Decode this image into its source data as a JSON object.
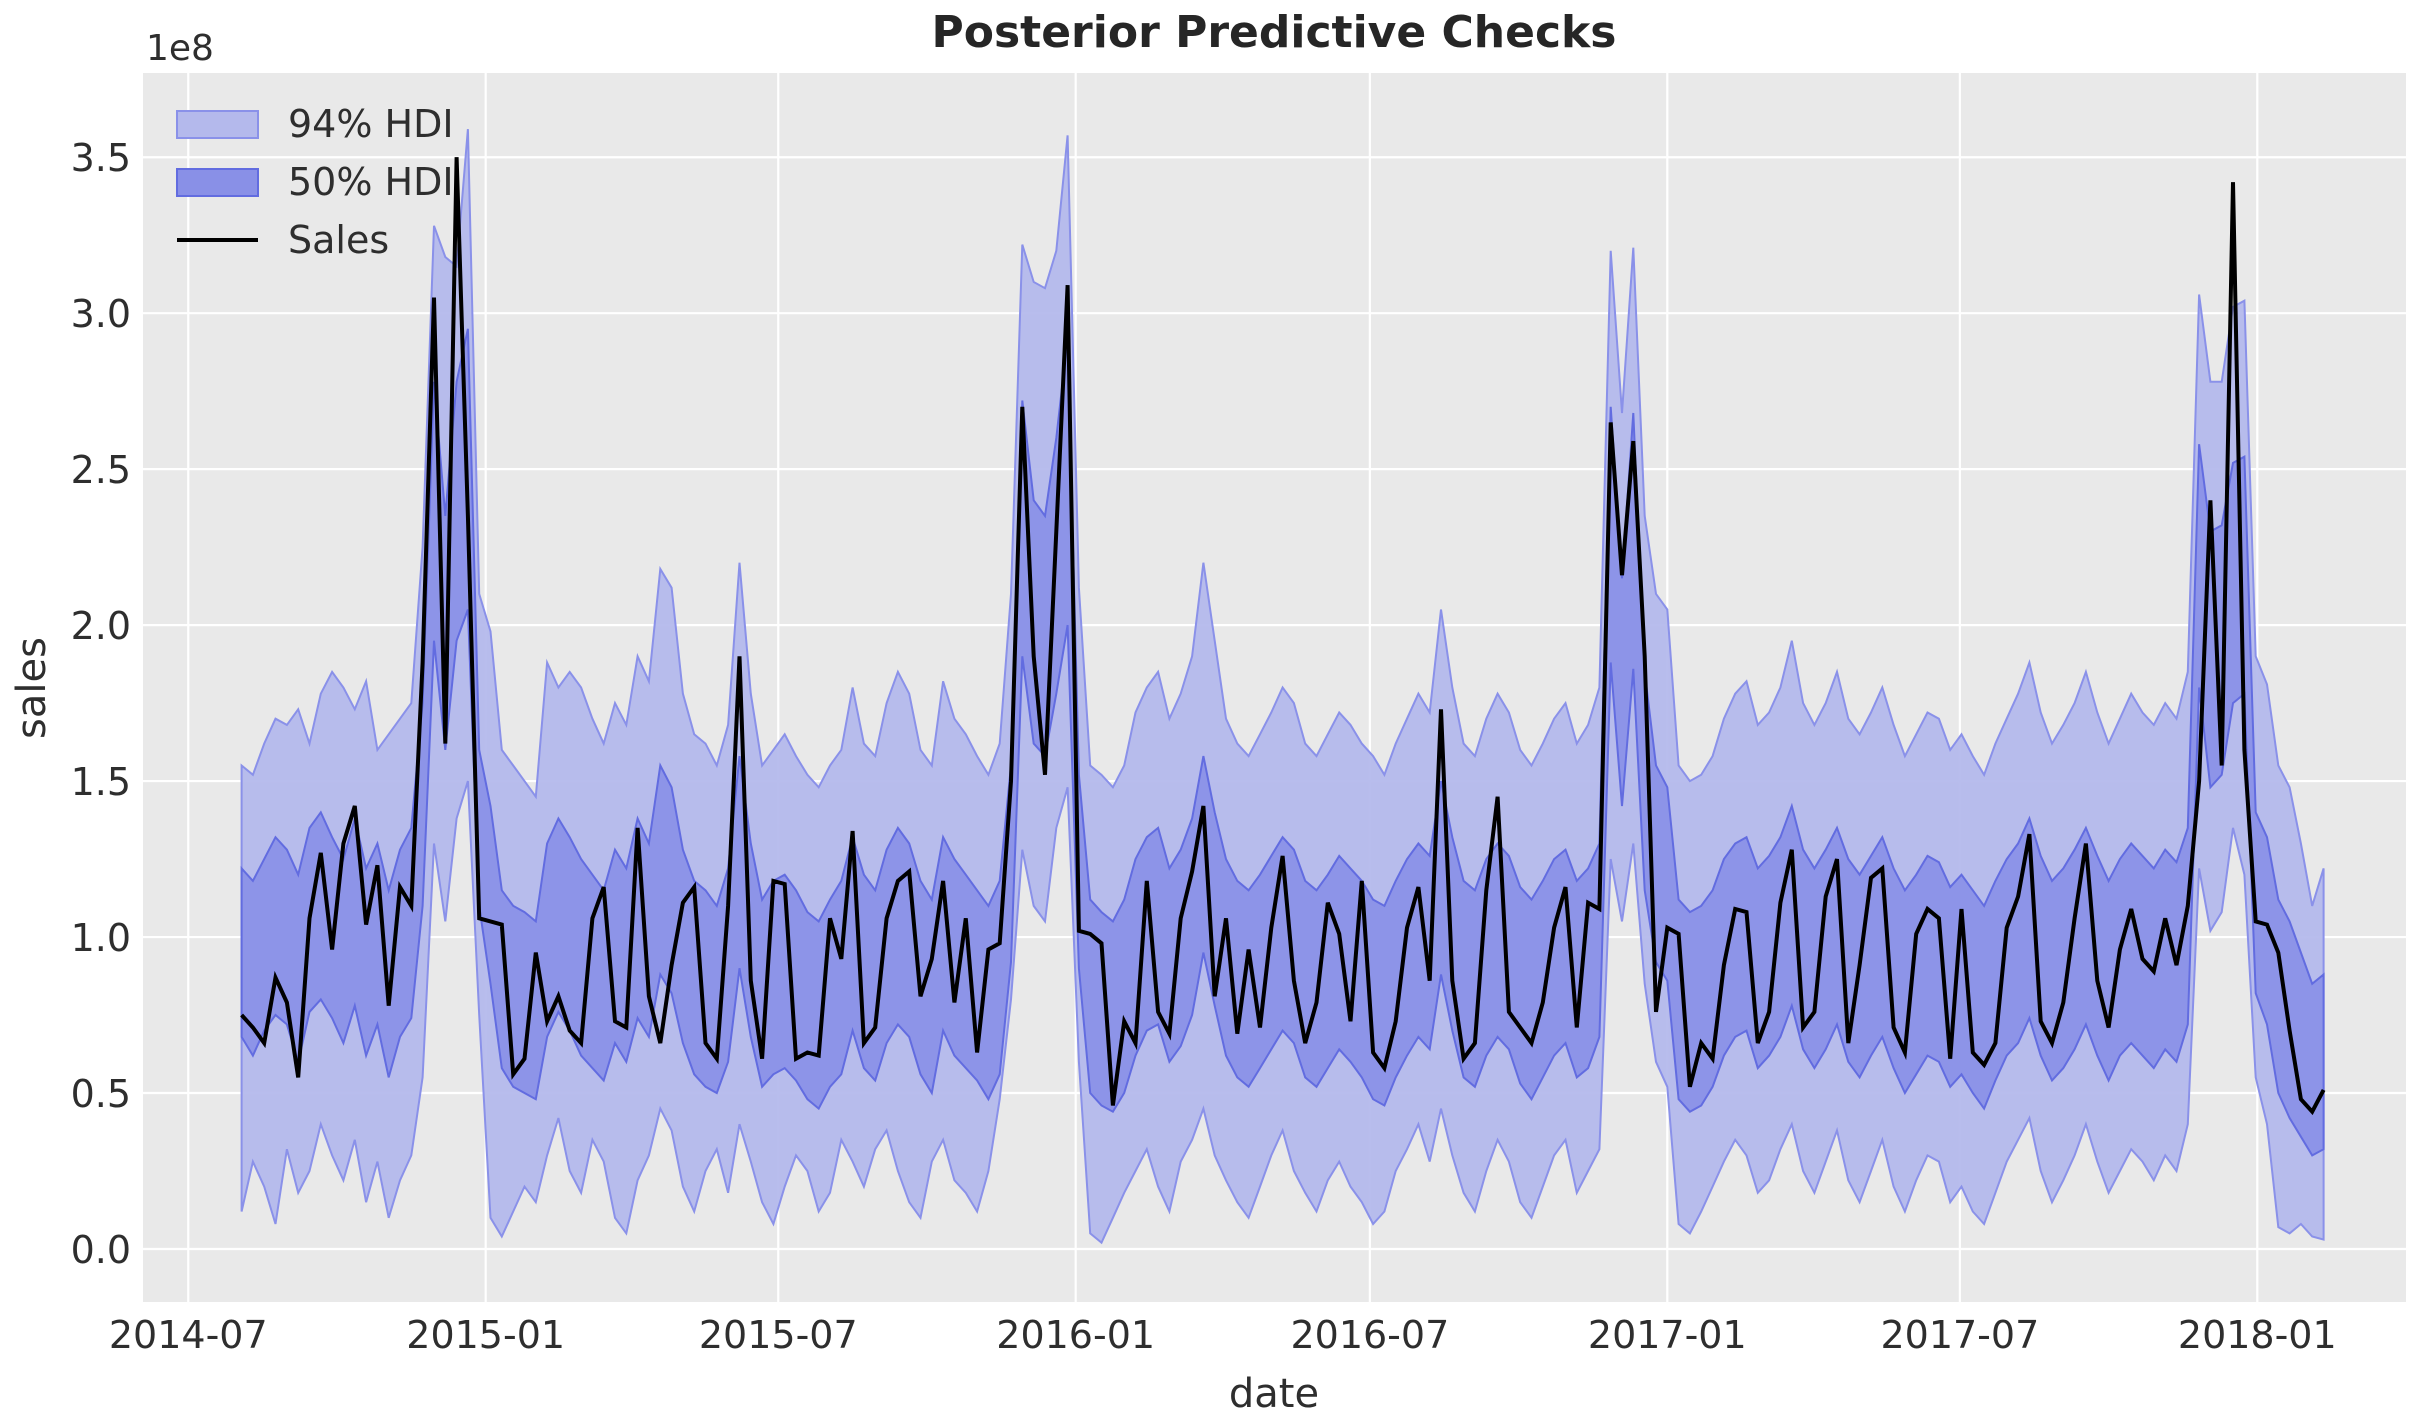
{
  "chart_data": {
    "type": "line",
    "title": "Posterior Predictive Checks",
    "xlabel": "date",
    "ylabel": "sales",
    "y_offset_text": "1e8",
    "unit": "1e8",
    "grid": true,
    "legend_position": "upper left",
    "legend": {
      "items": [
        {
          "label": "94% HDI",
          "kind": "patch"
        },
        {
          "label": "50% HDI",
          "kind": "patch"
        },
        {
          "label": "Sales",
          "kind": "line"
        }
      ]
    },
    "xlim": [
      "2014-06-03",
      "2018-04-03"
    ],
    "ylim": [
      -0.17,
      3.77
    ],
    "x_ticks": [
      {
        "label": "2014-07",
        "date": "2014-07-01"
      },
      {
        "label": "2015-01",
        "date": "2015-01-01"
      },
      {
        "label": "2015-07",
        "date": "2015-07-01"
      },
      {
        "label": "2016-01",
        "date": "2016-01-01"
      },
      {
        "label": "2016-07",
        "date": "2016-07-01"
      },
      {
        "label": "2017-01",
        "date": "2017-01-01"
      },
      {
        "label": "2017-07",
        "date": "2017-07-01"
      },
      {
        "label": "2018-01",
        "date": "2018-01-01"
      }
    ],
    "y_ticks": [
      {
        "label": "0.0",
        "value": 0.0
      },
      {
        "label": "0.5",
        "value": 0.5
      },
      {
        "label": "1.0",
        "value": 1.0
      },
      {
        "label": "1.5",
        "value": 1.5
      },
      {
        "label": "2.0",
        "value": 2.0
      },
      {
        "label": "2.5",
        "value": 2.5
      },
      {
        "label": "3.0",
        "value": 3.0
      },
      {
        "label": "3.5",
        "value": 3.5
      }
    ],
    "x_start": "2014-08-03",
    "x_step_days": 7,
    "n_points": 185,
    "series": [
      {
        "name": "94% HDI",
        "kind": "band",
        "hi": [
          1.55,
          1.52,
          1.62,
          1.7,
          1.68,
          1.73,
          1.62,
          1.78,
          1.85,
          1.8,
          1.73,
          1.82,
          1.6,
          1.65,
          1.7,
          1.75,
          2.25,
          3.28,
          3.18,
          3.15,
          3.59,
          2.1,
          1.98,
          1.6,
          1.55,
          1.5,
          1.45,
          1.88,
          1.8,
          1.85,
          1.8,
          1.7,
          1.62,
          1.75,
          1.68,
          1.9,
          1.82,
          2.18,
          2.12,
          1.78,
          1.65,
          1.62,
          1.55,
          1.68,
          2.2,
          1.78,
          1.55,
          1.6,
          1.65,
          1.58,
          1.52,
          1.48,
          1.55,
          1.6,
          1.8,
          1.62,
          1.58,
          1.75,
          1.85,
          1.78,
          1.6,
          1.55,
          1.82,
          1.7,
          1.65,
          1.58,
          1.52,
          1.62,
          2.1,
          3.22,
          3.1,
          3.08,
          3.2,
          3.57,
          2.12,
          1.55,
          1.52,
          1.48,
          1.55,
          1.72,
          1.8,
          1.85,
          1.7,
          1.78,
          1.9,
          2.2,
          1.95,
          1.7,
          1.62,
          1.58,
          1.65,
          1.72,
          1.8,
          1.75,
          1.62,
          1.58,
          1.65,
          1.72,
          1.68,
          1.62,
          1.58,
          1.52,
          1.62,
          1.7,
          1.78,
          1.72,
          2.05,
          1.8,
          1.62,
          1.58,
          1.7,
          1.78,
          1.72,
          1.6,
          1.55,
          1.62,
          1.7,
          1.75,
          1.62,
          1.68,
          1.8,
          3.2,
          2.68,
          3.21,
          2.35,
          2.1,
          2.05,
          1.55,
          1.5,
          1.52,
          1.58,
          1.7,
          1.78,
          1.82,
          1.68,
          1.72,
          1.8,
          1.95,
          1.75,
          1.68,
          1.75,
          1.85,
          1.7,
          1.65,
          1.72,
          1.8,
          1.68,
          1.58,
          1.65,
          1.72,
          1.7,
          1.6,
          1.65,
          1.58,
          1.52,
          1.62,
          1.7,
          1.78,
          1.88,
          1.72,
          1.62,
          1.68,
          1.75,
          1.85,
          1.72,
          1.62,
          1.7,
          1.78,
          1.72,
          1.68,
          1.75,
          1.7,
          1.85,
          3.06,
          2.78,
          2.78,
          3.02,
          3.04,
          1.9,
          1.81,
          1.55,
          1.48,
          1.3,
          1.1,
          1.22
        ],
        "lo": [
          0.12,
          0.28,
          0.2,
          0.08,
          0.32,
          0.18,
          0.25,
          0.4,
          0.3,
          0.22,
          0.35,
          0.15,
          0.28,
          0.1,
          0.22,
          0.3,
          0.55,
          1.3,
          1.05,
          1.38,
          1.5,
          0.75,
          0.1,
          0.04,
          0.12,
          0.2,
          0.15,
          0.3,
          0.42,
          0.25,
          0.18,
          0.35,
          0.28,
          0.1,
          0.05,
          0.22,
          0.3,
          0.45,
          0.38,
          0.2,
          0.12,
          0.25,
          0.32,
          0.18,
          0.4,
          0.28,
          0.15,
          0.08,
          0.2,
          0.3,
          0.25,
          0.12,
          0.18,
          0.35,
          0.28,
          0.2,
          0.32,
          0.38,
          0.25,
          0.15,
          0.1,
          0.28,
          0.35,
          0.22,
          0.18,
          0.12,
          0.25,
          0.48,
          0.8,
          1.28,
          1.1,
          1.05,
          1.35,
          1.48,
          0.6,
          0.05,
          0.02,
          0.1,
          0.18,
          0.25,
          0.32,
          0.2,
          0.12,
          0.28,
          0.35,
          0.45,
          0.3,
          0.22,
          0.15,
          0.1,
          0.2,
          0.3,
          0.38,
          0.25,
          0.18,
          0.12,
          0.22,
          0.28,
          0.2,
          0.15,
          0.08,
          0.12,
          0.25,
          0.32,
          0.4,
          0.28,
          0.45,
          0.3,
          0.18,
          0.12,
          0.25,
          0.35,
          0.28,
          0.15,
          0.1,
          0.2,
          0.3,
          0.35,
          0.18,
          0.25,
          0.32,
          1.25,
          1.05,
          1.3,
          0.85,
          0.6,
          0.52,
          0.08,
          0.05,
          0.12,
          0.2,
          0.28,
          0.35,
          0.3,
          0.18,
          0.22,
          0.32,
          0.4,
          0.25,
          0.18,
          0.28,
          0.38,
          0.22,
          0.15,
          0.25,
          0.35,
          0.2,
          0.12,
          0.22,
          0.3,
          0.28,
          0.15,
          0.2,
          0.12,
          0.08,
          0.18,
          0.28,
          0.35,
          0.42,
          0.25,
          0.15,
          0.22,
          0.3,
          0.4,
          0.28,
          0.18,
          0.25,
          0.32,
          0.28,
          0.22,
          0.3,
          0.25,
          0.4,
          1.22,
          1.02,
          1.08,
          1.35,
          1.2,
          0.55,
          0.4,
          0.07,
          0.05,
          0.08,
          0.04,
          0.03
        ]
      },
      {
        "name": "50% HDI",
        "kind": "band",
        "hi": [
          1.22,
          1.18,
          1.25,
          1.32,
          1.28,
          1.2,
          1.35,
          1.4,
          1.32,
          1.25,
          1.38,
          1.22,
          1.3,
          1.15,
          1.28,
          1.35,
          1.75,
          2.78,
          2.35,
          2.78,
          2.95,
          1.6,
          1.42,
          1.15,
          1.1,
          1.08,
          1.05,
          1.3,
          1.38,
          1.32,
          1.25,
          1.2,
          1.15,
          1.28,
          1.22,
          1.38,
          1.3,
          1.55,
          1.48,
          1.28,
          1.18,
          1.15,
          1.1,
          1.22,
          1.58,
          1.3,
          1.12,
          1.18,
          1.2,
          1.15,
          1.08,
          1.05,
          1.12,
          1.18,
          1.32,
          1.2,
          1.15,
          1.28,
          1.35,
          1.3,
          1.18,
          1.12,
          1.32,
          1.25,
          1.2,
          1.15,
          1.1,
          1.18,
          1.55,
          2.72,
          2.4,
          2.35,
          2.6,
          2.92,
          1.52,
          1.12,
          1.08,
          1.05,
          1.12,
          1.25,
          1.32,
          1.35,
          1.22,
          1.28,
          1.38,
          1.58,
          1.4,
          1.25,
          1.18,
          1.15,
          1.2,
          1.26,
          1.32,
          1.28,
          1.18,
          1.15,
          1.2,
          1.26,
          1.22,
          1.18,
          1.12,
          1.1,
          1.18,
          1.25,
          1.3,
          1.26,
          1.5,
          1.32,
          1.18,
          1.15,
          1.25,
          1.3,
          1.26,
          1.16,
          1.12,
          1.18,
          1.25,
          1.28,
          1.18,
          1.22,
          1.3,
          2.7,
          2.15,
          2.68,
          1.85,
          1.55,
          1.48,
          1.12,
          1.08,
          1.1,
          1.15,
          1.25,
          1.3,
          1.32,
          1.22,
          1.26,
          1.32,
          1.42,
          1.28,
          1.22,
          1.28,
          1.35,
          1.25,
          1.2,
          1.26,
          1.32,
          1.22,
          1.15,
          1.2,
          1.26,
          1.24,
          1.16,
          1.2,
          1.15,
          1.1,
          1.18,
          1.25,
          1.3,
          1.38,
          1.26,
          1.18,
          1.22,
          1.28,
          1.35,
          1.26,
          1.18,
          1.25,
          1.3,
          1.26,
          1.22,
          1.28,
          1.24,
          1.35,
          2.58,
          2.3,
          2.32,
          2.52,
          2.54,
          1.4,
          1.32,
          1.12,
          1.05,
          0.95,
          0.85,
          0.88
        ],
        "lo": [
          0.68,
          0.62,
          0.7,
          0.75,
          0.72,
          0.6,
          0.76,
          0.8,
          0.74,
          0.66,
          0.78,
          0.62,
          0.72,
          0.55,
          0.68,
          0.74,
          1.1,
          1.95,
          1.6,
          1.95,
          2.05,
          1.1,
          0.85,
          0.58,
          0.52,
          0.5,
          0.48,
          0.68,
          0.76,
          0.7,
          0.62,
          0.58,
          0.54,
          0.66,
          0.6,
          0.74,
          0.68,
          0.88,
          0.82,
          0.66,
          0.56,
          0.52,
          0.5,
          0.6,
          0.9,
          0.68,
          0.52,
          0.56,
          0.58,
          0.54,
          0.48,
          0.45,
          0.52,
          0.56,
          0.7,
          0.58,
          0.54,
          0.66,
          0.72,
          0.68,
          0.56,
          0.5,
          0.7,
          0.62,
          0.58,
          0.54,
          0.48,
          0.56,
          0.92,
          1.9,
          1.62,
          1.58,
          1.78,
          2.0,
          0.9,
          0.5,
          0.46,
          0.44,
          0.5,
          0.62,
          0.7,
          0.72,
          0.6,
          0.65,
          0.75,
          0.95,
          0.78,
          0.62,
          0.55,
          0.52,
          0.58,
          0.64,
          0.7,
          0.66,
          0.55,
          0.52,
          0.58,
          0.64,
          0.6,
          0.55,
          0.48,
          0.46,
          0.55,
          0.62,
          0.68,
          0.64,
          0.88,
          0.7,
          0.55,
          0.52,
          0.62,
          0.68,
          0.64,
          0.53,
          0.48,
          0.55,
          0.62,
          0.66,
          0.55,
          0.58,
          0.68,
          1.88,
          1.42,
          1.86,
          1.15,
          0.92,
          0.86,
          0.48,
          0.44,
          0.46,
          0.52,
          0.62,
          0.68,
          0.7,
          0.58,
          0.62,
          0.68,
          0.78,
          0.64,
          0.58,
          0.64,
          0.72,
          0.6,
          0.55,
          0.62,
          0.68,
          0.58,
          0.5,
          0.56,
          0.62,
          0.6,
          0.52,
          0.56,
          0.5,
          0.45,
          0.54,
          0.62,
          0.66,
          0.74,
          0.62,
          0.54,
          0.58,
          0.64,
          0.72,
          0.62,
          0.54,
          0.62,
          0.66,
          0.62,
          0.58,
          0.64,
          0.6,
          0.72,
          1.8,
          1.48,
          1.52,
          1.75,
          1.78,
          0.82,
          0.72,
          0.5,
          0.42,
          0.36,
          0.3,
          0.32
        ]
      },
      {
        "name": "Sales",
        "kind": "line",
        "values": [
          0.75,
          0.71,
          0.66,
          0.87,
          0.79,
          0.55,
          1.06,
          1.27,
          0.96,
          1.3,
          1.42,
          1.04,
          1.23,
          0.78,
          1.16,
          1.1,
          1.88,
          3.05,
          1.62,
          3.5,
          2.35,
          1.06,
          1.05,
          1.04,
          0.56,
          0.61,
          0.95,
          0.73,
          0.81,
          0.7,
          0.66,
          1.06,
          1.16,
          0.73,
          0.71,
          1.35,
          0.81,
          0.66,
          0.91,
          1.11,
          1.16,
          0.66,
          0.61,
          1.1,
          1.9,
          0.86,
          0.61,
          1.18,
          1.17,
          0.61,
          0.63,
          0.62,
          1.06,
          0.93,
          1.34,
          0.66,
          0.71,
          1.06,
          1.18,
          1.21,
          0.81,
          0.93,
          1.18,
          0.79,
          1.06,
          0.63,
          0.96,
          0.98,
          1.5,
          2.7,
          1.9,
          1.52,
          2.3,
          3.09,
          1.02,
          1.01,
          0.98,
          0.46,
          0.73,
          0.66,
          1.18,
          0.76,
          0.69,
          1.06,
          1.21,
          1.42,
          0.81,
          1.06,
          0.69,
          0.96,
          0.71,
          1.03,
          1.26,
          0.86,
          0.66,
          0.79,
          1.11,
          1.01,
          0.73,
          1.18,
          0.63,
          0.58,
          0.73,
          1.03,
          1.16,
          0.86,
          1.73,
          0.86,
          0.61,
          0.66,
          1.15,
          1.45,
          0.76,
          0.71,
          0.66,
          0.79,
          1.03,
          1.16,
          0.71,
          1.11,
          1.09,
          2.65,
          2.16,
          2.59,
          1.9,
          0.76,
          1.03,
          1.01,
          0.52,
          0.66,
          0.61,
          0.91,
          1.09,
          1.08,
          0.66,
          0.76,
          1.11,
          1.28,
          0.71,
          0.76,
          1.13,
          1.25,
          0.66,
          0.91,
          1.19,
          1.22,
          0.71,
          0.63,
          1.01,
          1.09,
          1.06,
          0.61,
          1.09,
          0.63,
          0.59,
          0.66,
          1.03,
          1.13,
          1.33,
          0.73,
          0.66,
          0.79,
          1.06,
          1.3,
          0.86,
          0.71,
          0.96,
          1.09,
          0.93,
          0.89,
          1.06,
          0.91,
          1.1,
          1.5,
          2.4,
          1.55,
          3.42,
          1.6,
          1.05,
          1.04,
          0.95,
          0.7,
          0.48,
          0.44,
          0.51
        ]
      }
    ],
    "colors": {
      "axes_background": "#e9e9e9",
      "figure_background": "#ffffff",
      "gridline": "#ffffff",
      "band_94_fill": "#b4b9ec",
      "band_94_edge": "#8a91e9",
      "band_50_fill": "#8990e7",
      "band_50_edge": "#626ce0",
      "sales_line": "#000000",
      "text": "#2e2e2e"
    }
  }
}
